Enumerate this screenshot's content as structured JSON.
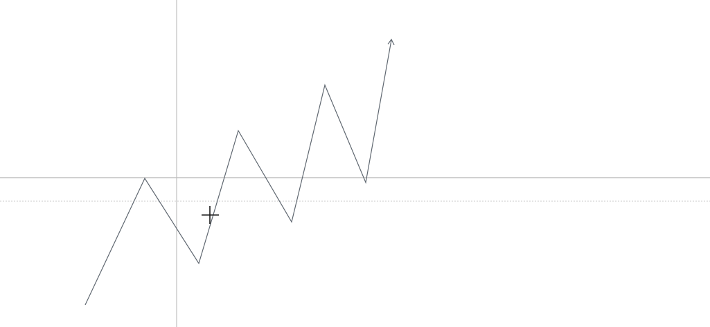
{
  "canvas": {
    "background": "#ffffff"
  },
  "colors": {
    "guide_line": "#c0c0c0",
    "dotted_guide": "#c8c8c8",
    "zigzag_line": "#5f6770",
    "cursor": "#1a1a1a"
  },
  "zigzag": {
    "description_kind": "freehand zigzag polyline with arrowhead at end",
    "segments": 8,
    "has_arrowhead": true
  },
  "guides": {
    "vertical_guide": true,
    "horizontal_guide": true,
    "dotted_horizontal_guide": true
  },
  "cursor": {
    "icon": "crosshair-cursor-icon"
  }
}
